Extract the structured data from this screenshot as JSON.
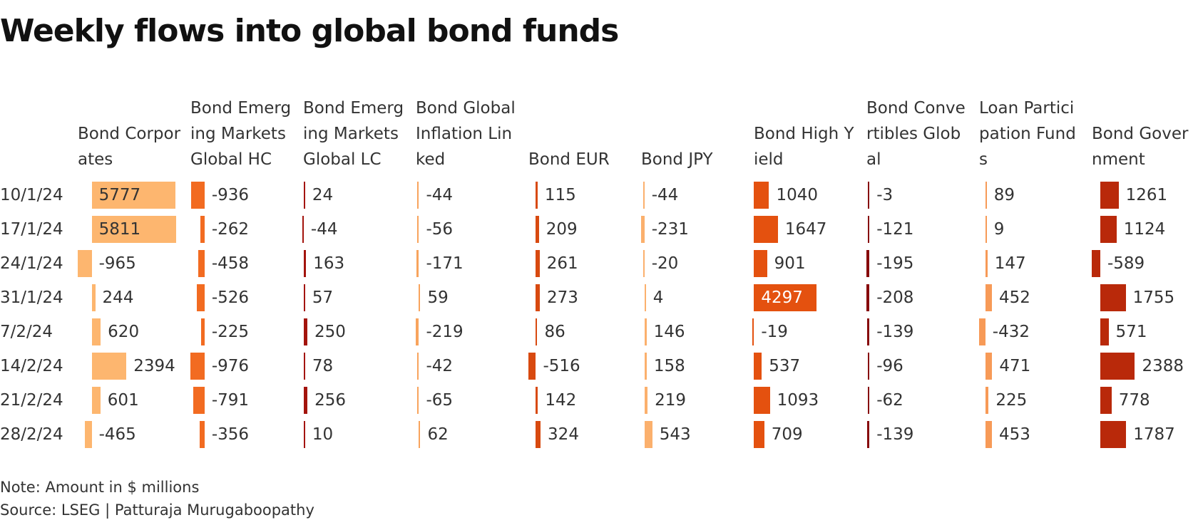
{
  "title": "Weekly flows into global bond funds",
  "columns": [
    {
      "name": "Bond Corporates",
      "color": "#fdb66f"
    },
    {
      "name": "Bond Emerging Markets Global HC",
      "color": "#f26b21"
    },
    {
      "name": "Bond Emerging Markets Global LC",
      "color": "#a3140d"
    },
    {
      "name": "Bond Global Inflation Linked",
      "color": "#f8a45d"
    },
    {
      "name": "Bond EUR",
      "color": "#d84a10"
    },
    {
      "name": "Bond JPY",
      "color": "#fbb06d"
    },
    {
      "name": "Bond High Yield",
      "color": "#e4510f"
    },
    {
      "name": "Bond Convertibles Global",
      "color": "#870a0c"
    },
    {
      "name": "Loan Participation Funds",
      "color": "#f79a57"
    },
    {
      "name": "Bond Government",
      "color": "#b9290a"
    }
  ],
  "rows": [
    {
      "date": "10/1/24",
      "values": [
        5777,
        -936,
        24,
        -44,
        115,
        -44,
        1040,
        -3,
        89,
        1261
      ]
    },
    {
      "date": "17/1/24",
      "values": [
        5811,
        -262,
        -44,
        -56,
        209,
        -231,
        1647,
        -121,
        9,
        1124
      ]
    },
    {
      "date": "24/1/24",
      "values": [
        -965,
        -458,
        163,
        -171,
        261,
        -20,
        901,
        -195,
        147,
        -589
      ]
    },
    {
      "date": "31/1/24",
      "values": [
        244,
        -526,
        57,
        59,
        273,
        4,
        4297,
        -208,
        452,
        1755
      ]
    },
    {
      "date": "7/2/24",
      "values": [
        620,
        -225,
        250,
        -219,
        86,
        146,
        -19,
        -139,
        -432,
        571
      ]
    },
    {
      "date": "14/2/24",
      "values": [
        2394,
        -976,
        78,
        -42,
        -516,
        158,
        537,
        -96,
        471,
        2388
      ]
    },
    {
      "date": "21/2/24",
      "values": [
        601,
        -791,
        256,
        -65,
        142,
        219,
        1093,
        -62,
        225,
        778
      ]
    },
    {
      "date": "28/2/24",
      "values": [
        -465,
        -356,
        10,
        62,
        324,
        543,
        709,
        -139,
        453,
        1787
      ]
    }
  ],
  "note": "Note: Amount in $ millions",
  "source": "Source: LSEG | Patturaja Murugaboopathy"
}
